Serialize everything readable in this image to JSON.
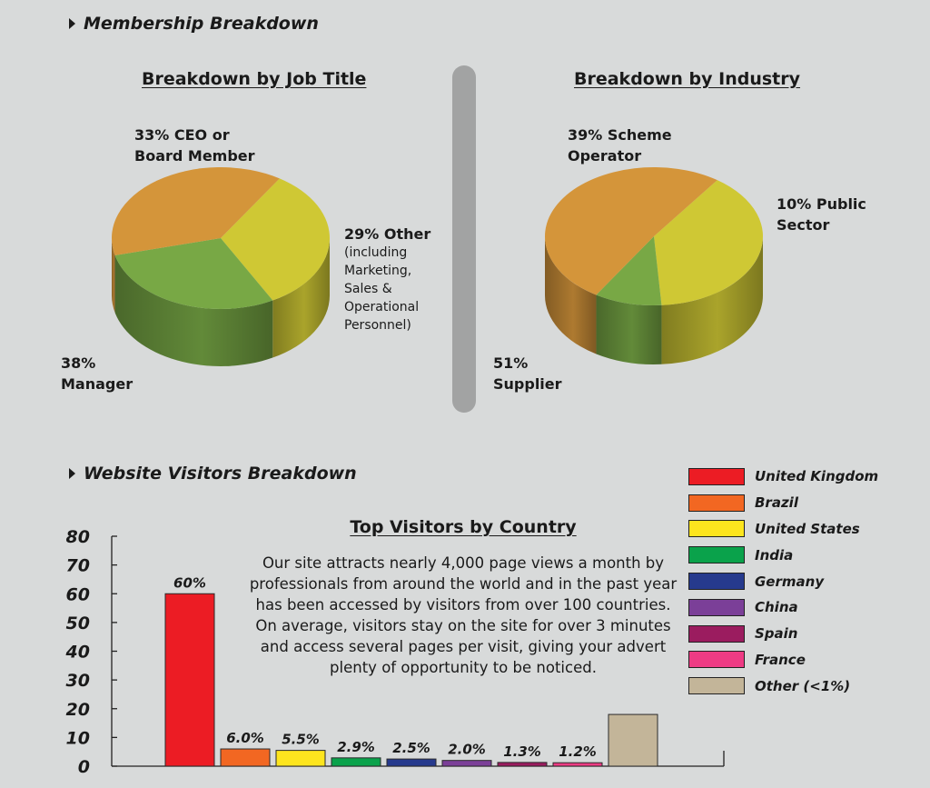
{
  "sections": {
    "membership": "Membership Breakdown",
    "visitors": "Website Visitors Breakdown"
  },
  "pie_job": {
    "title": "Breakdown by Job Title",
    "label_ceo": [
      "33% CEO or",
      "Board Member"
    ],
    "label_other": "29% Other",
    "label_other_detail": [
      "(including",
      "Marketing,",
      "Sales &",
      "Operational",
      "Personnel)"
    ],
    "label_manager": [
      "38%",
      "Manager"
    ]
  },
  "pie_industry": {
    "title": "Breakdown by Industry",
    "label_scheme": [
      "39% Scheme",
      "Operator"
    ],
    "label_public": [
      "10% Public",
      "Sector"
    ],
    "label_supplier": [
      "51%",
      "Supplier"
    ]
  },
  "bar_chart": {
    "title": "Top Visitors by Country",
    "description": "Our site attracts nearly 4,000 page views a month by professionals from around the world and in the past year has been accessed by visitors from over 100 countries. On average, visitors stay on the site for over 3 minutes and access several pages per visit, giving your advert plenty of opportunity to be noticed."
  },
  "chart_data": [
    {
      "type": "pie",
      "title": "Breakdown by Job Title",
      "slices": [
        {
          "label": "CEO or Board Member",
          "value": 33,
          "color": "#cfc834"
        },
        {
          "label": "Other (including Marketing, Sales & Operational Personnel)",
          "value": 29,
          "color": "#78a845"
        },
        {
          "label": "Manager",
          "value": 38,
          "color": "#d4953a"
        }
      ]
    },
    {
      "type": "pie",
      "title": "Breakdown by Industry",
      "slices": [
        {
          "label": "Scheme Operator",
          "value": 39,
          "color": "#cfc834"
        },
        {
          "label": "Public Sector",
          "value": 10,
          "color": "#78a845"
        },
        {
          "label": "Supplier",
          "value": 51,
          "color": "#d4953a"
        }
      ]
    },
    {
      "type": "bar",
      "title": "Top Visitors by Country",
      "categories": [
        "United Kingdom",
        "Brazil",
        "United States",
        "India",
        "Germany",
        "China",
        "Spain",
        "France",
        "Other (<1%)"
      ],
      "values": [
        60,
        6.0,
        5.5,
        2.9,
        2.5,
        2.0,
        1.3,
        1.2,
        18
      ],
      "value_labels": [
        "60%",
        "6.0%",
        "5.5%",
        "2.9%",
        "2.5%",
        "2.0%",
        "1.3%",
        "1.2%",
        ""
      ],
      "colors": [
        "#ec1c24",
        "#f26722",
        "#fde51e",
        "#0aa24b",
        "#263a8d",
        "#7b3f98",
        "#9b1c5f",
        "#ee3b84",
        "#c3b599"
      ],
      "yticks": [
        "0",
        "10",
        "20",
        "30",
        "40",
        "50",
        "60",
        "70",
        "80"
      ],
      "ylim": [
        0,
        80
      ],
      "legend": "right"
    }
  ]
}
